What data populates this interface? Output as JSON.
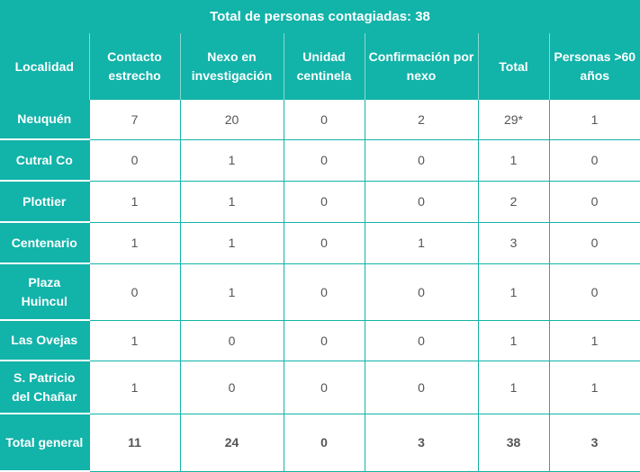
{
  "title": "Total de personas contagiadas: 38",
  "headers": [
    "Localidad",
    "Contacto estrecho",
    "Nexo en investigación",
    "Unidad centinela",
    "Confirmación por nexo",
    "Total",
    "Personas >60 años"
  ],
  "rows": [
    {
      "locality": "Neuquén",
      "cells": [
        "7",
        "20",
        "0",
        "2",
        "29*",
        "1"
      ]
    },
    {
      "locality": "Cutral Co",
      "cells": [
        "0",
        "1",
        "0",
        "0",
        "1",
        "0"
      ]
    },
    {
      "locality": "Plottier",
      "cells": [
        "1",
        "1",
        "0",
        "0",
        "2",
        "0"
      ]
    },
    {
      "locality": "Centenario",
      "cells": [
        "1",
        "1",
        "0",
        "1",
        "3",
        "0"
      ]
    },
    {
      "locality": "Plaza Huincul",
      "cells": [
        "0",
        "1",
        "0",
        "0",
        "1",
        "0"
      ]
    },
    {
      "locality": "Las Ovejas",
      "cells": [
        "1",
        "0",
        "0",
        "0",
        "1",
        "1"
      ]
    },
    {
      "locality": "S. Patricio del Chañar",
      "cells": [
        "1",
        "0",
        "0",
        "0",
        "1",
        "1"
      ]
    },
    {
      "locality": "Total general",
      "cells": [
        "11",
        "24",
        "0",
        "3",
        "38",
        "3"
      ]
    }
  ],
  "colors": {
    "header_bg": "#12b3a9",
    "cell_text": "#555555"
  }
}
